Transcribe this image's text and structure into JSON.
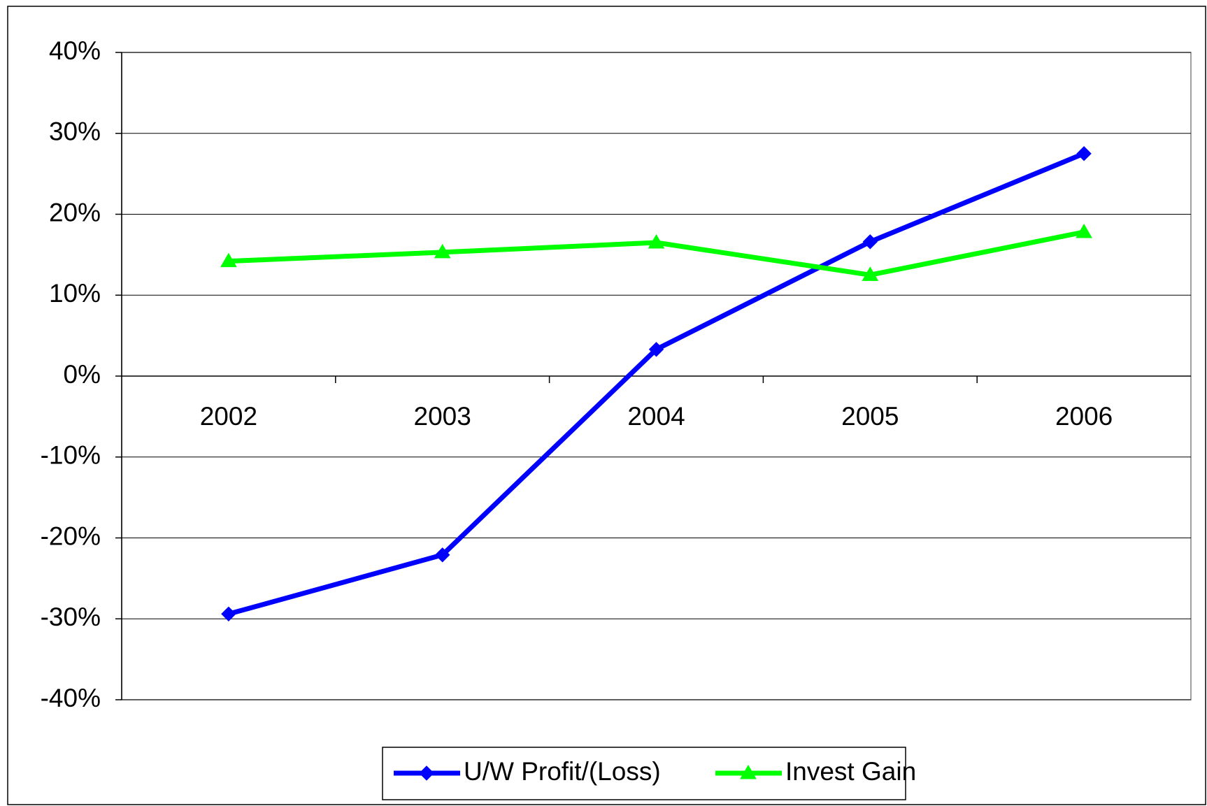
{
  "chart_data": {
    "type": "line",
    "categories": [
      "2002",
      "2003",
      "2004",
      "2005",
      "2006"
    ],
    "series": [
      {
        "name": "U/W Profit/(Loss)",
        "color": "#0000ff",
        "marker": "diamond",
        "values": [
          -29.4,
          -22.1,
          3.3,
          16.6,
          27.5
        ]
      },
      {
        "name": "Invest Gain",
        "color": "#00ff00",
        "marker": "triangle",
        "values": [
          14.2,
          15.3,
          16.5,
          12.5,
          17.8
        ]
      }
    ],
    "ylim": [
      -40,
      40
    ],
    "yticks": [
      {
        "value": -40,
        "label": "-40%"
      },
      {
        "value": -30,
        "label": "-30%"
      },
      {
        "value": -20,
        "label": "-20%"
      },
      {
        "value": -10,
        "label": "-10%"
      },
      {
        "value": 0,
        "label": "0%"
      },
      {
        "value": 10,
        "label": "10%"
      },
      {
        "value": 20,
        "label": "20%"
      },
      {
        "value": 30,
        "label": "30%"
      },
      {
        "value": 40,
        "label": "40%"
      }
    ],
    "grid": true,
    "legend": "bottom"
  }
}
